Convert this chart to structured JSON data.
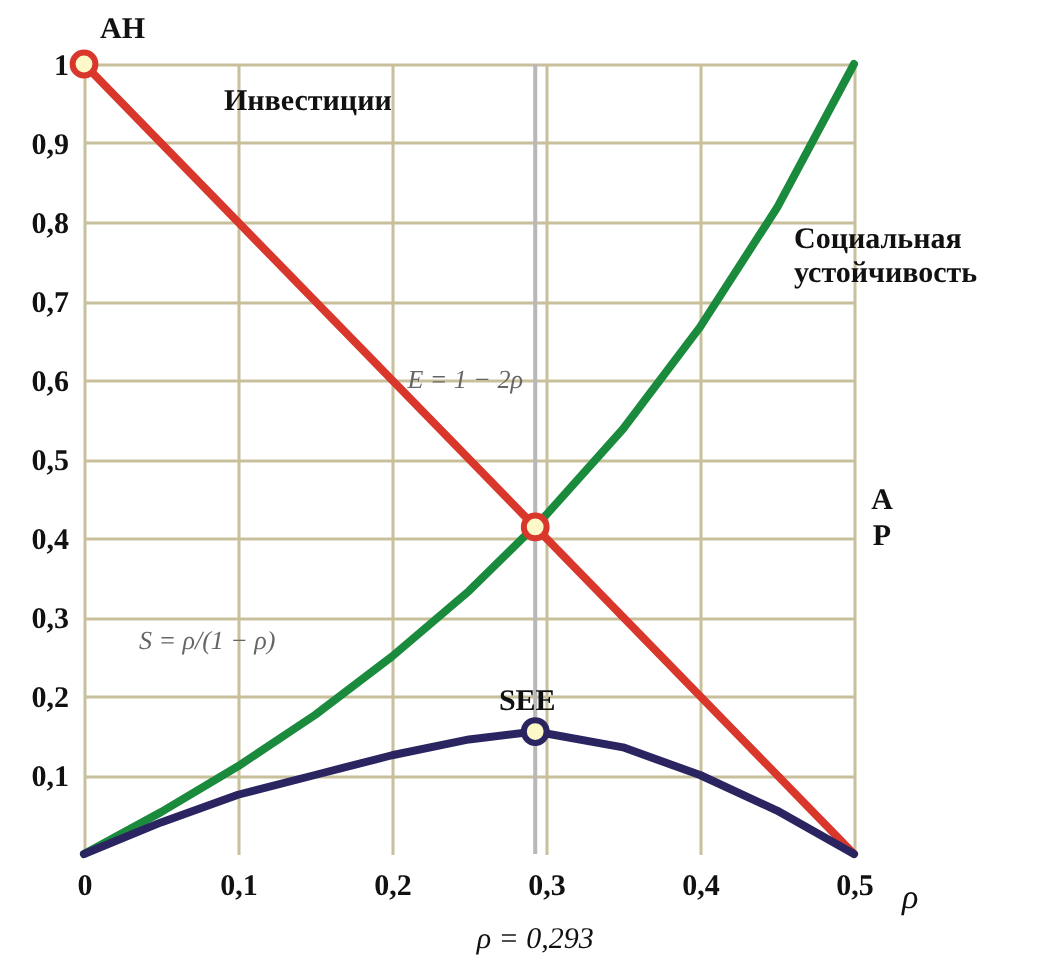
{
  "chart_data": {
    "type": "line",
    "xlabel": "ρ",
    "xlim": [
      0,
      0.5
    ],
    "ylim": [
      0,
      1
    ],
    "xticks": [
      {
        "value": 0,
        "label": "0"
      },
      {
        "value": 0.1,
        "label": "0,1"
      },
      {
        "value": 0.2,
        "label": "0,2"
      },
      {
        "value": 0.3,
        "label": "0,3"
      },
      {
        "value": 0.4,
        "label": "0,4"
      },
      {
        "value": 0.5,
        "label": "0,5"
      }
    ],
    "yticks": [
      {
        "value": 0.1,
        "label": "0,1"
      },
      {
        "value": 0.2,
        "label": "0,2"
      },
      {
        "value": 0.3,
        "label": "0,3"
      },
      {
        "value": 0.4,
        "label": "0,4"
      },
      {
        "value": 0.5,
        "label": "0,5"
      },
      {
        "value": 0.6,
        "label": "0,6"
      },
      {
        "value": 0.7,
        "label": "0,7"
      },
      {
        "value": 0.8,
        "label": "0,8"
      },
      {
        "value": 0.9,
        "label": "0,9"
      },
      1
    ],
    "grid": true,
    "series": [
      {
        "name": "Инвестиции",
        "color": "#d9372b",
        "x": [
          0,
          0.5
        ],
        "values": [
          1,
          0
        ]
      },
      {
        "name": "Социальная устойчивость",
        "color": "#1a8a3c",
        "x": [
          0,
          0.05,
          0.1,
          0.15,
          0.2,
          0.25,
          0.3,
          0.35,
          0.4,
          0.45,
          0.5
        ],
        "values": [
          0,
          0.053,
          0.111,
          0.176,
          0.25,
          0.333,
          0.429,
          0.538,
          0.667,
          0.818,
          1
        ]
      },
      {
        "color": "#2a2560",
        "x": [
          0,
          0.05,
          0.1,
          0.15,
          0.2,
          0.25,
          0.293,
          0.35,
          0.4,
          0.45,
          0.5
        ],
        "values": [
          0,
          0.04,
          0.075,
          0.1,
          0.125,
          0.145,
          0.155,
          0.135,
          0.1,
          0.055,
          0
        ]
      },
      {
        "type": "scatter",
        "marker": "circle",
        "color": "#d9372b",
        "x": [
          0,
          0.293
        ],
        "values": [
          1,
          0.414
        ]
      },
      {
        "type": "scatter",
        "marker": "circle",
        "color": "#2a2560",
        "x": [
          0.293
        ],
        "values": [
          0.155
        ]
      }
    ],
    "ref_lines": [
      {
        "axis": "x",
        "value": 0.293,
        "label": "ρ = 0,293",
        "color": "#b8b8b8"
      }
    ],
    "annotations": [
      {
        "text": "AH",
        "x": 0,
        "y": 1
      },
      {
        "text": "SEE",
        "x": 0.293,
        "y": 0.155
      },
      "E = 1 − 2ρ",
      "S = ρ/(1 − ρ)",
      "AP"
    ]
  }
}
